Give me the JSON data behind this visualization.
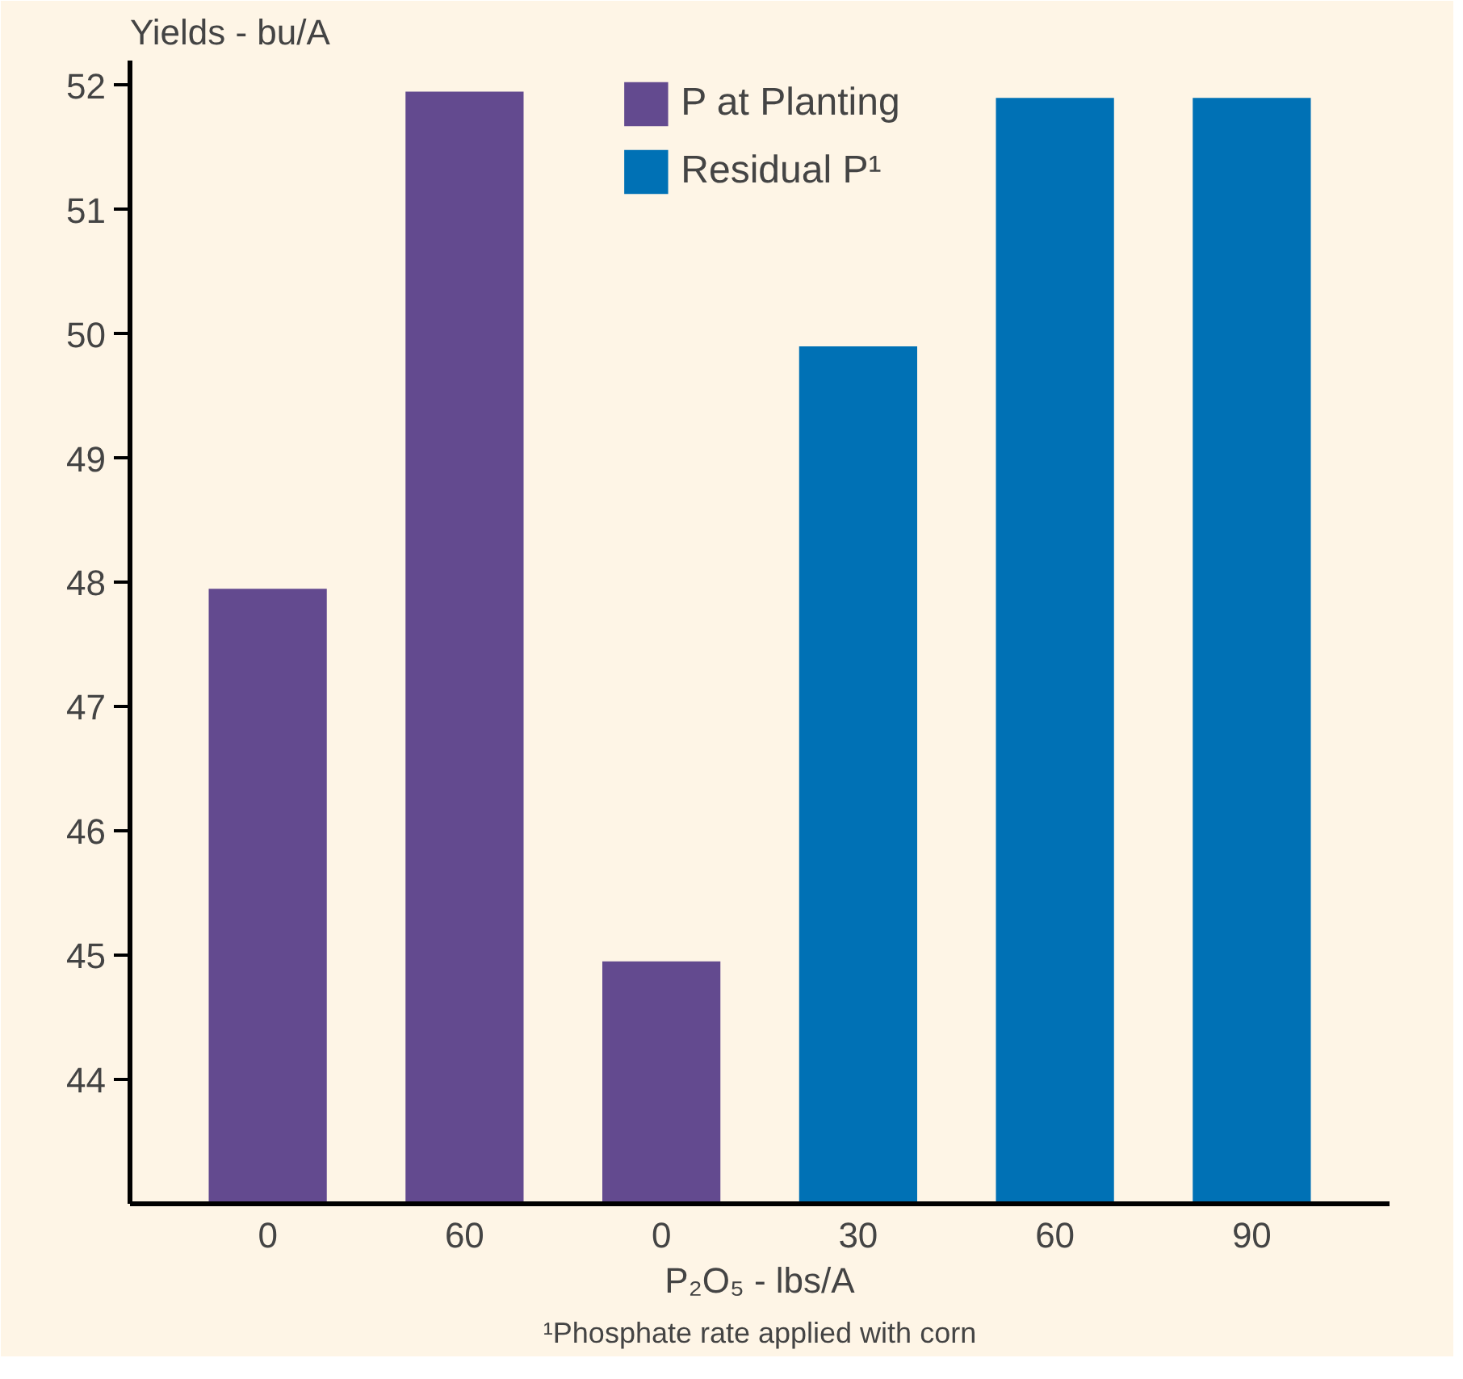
{
  "chart_data": {
    "type": "bar",
    "ylabel": "Yields - bu/A",
    "xlabel": "P₂O₅ - lbs/A",
    "categories": [
      "0",
      "60",
      "0",
      "30",
      "60",
      "90"
    ],
    "series": [
      {
        "name": "P at Planting",
        "color": "#634a8f",
        "values": [
          47.95,
          51.95,
          44.95,
          null,
          null,
          null
        ]
      },
      {
        "name": "Residual P¹",
        "color": "#0071b5",
        "values": [
          null,
          null,
          null,
          49.9,
          51.9,
          51.9
        ]
      }
    ],
    "ylim": [
      43,
      52.2
    ],
    "yticks": [
      44,
      45,
      46,
      47,
      48,
      49,
      50,
      51,
      52
    ],
    "legend": "top",
    "grid": false,
    "annotations": [
      "¹Phosphate rate applied with corn"
    ]
  }
}
